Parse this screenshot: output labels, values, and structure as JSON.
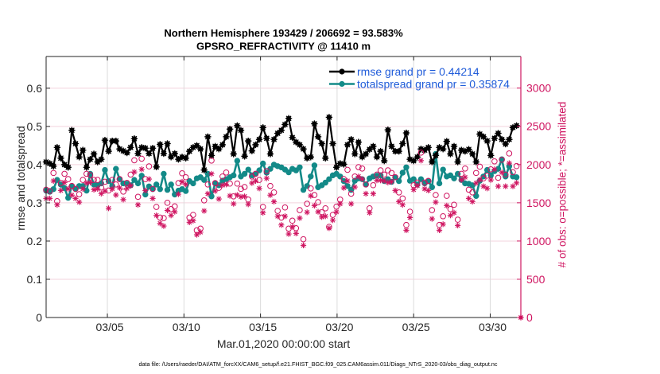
{
  "chart_data": {
    "type": "line",
    "title": [
      "Northern Hemisphere 193429 / 206692 = 93.583%",
      "GPSRO_REFRACTIVITY @ 11410 m"
    ],
    "xlabel": "Mar.01,2020 00:00:00 start",
    "ylabel_left": "rmse and totalspread",
    "ylabel_right": "# of obs: o=possible; *=assimilated",
    "x_units": "days since Mar.01,2020 00:00:00",
    "xlim": [
      0,
      31
    ],
    "ylim_left": [
      0,
      0.683
    ],
    "ylim_right": [
      0,
      3413
    ],
    "grid": true,
    "xticks": [
      {
        "value": 4,
        "label": "03/05"
      },
      {
        "value": 9,
        "label": "03/10"
      },
      {
        "value": 14,
        "label": "03/15"
      },
      {
        "value": 19,
        "label": "03/20"
      },
      {
        "value": 24,
        "label": "03/25"
      },
      {
        "value": 29,
        "label": "03/30"
      }
    ],
    "yticks_left": [
      {
        "value": 0,
        "label": "0"
      },
      {
        "value": 0.1,
        "label": "0.1"
      },
      {
        "value": 0.2,
        "label": "0.2"
      },
      {
        "value": 0.3,
        "label": "0.3"
      },
      {
        "value": 0.4,
        "label": "0.4"
      },
      {
        "value": 0.5,
        "label": "0.5"
      },
      {
        "value": 0.6,
        "label": "0.6"
      }
    ],
    "yticks_right": [
      {
        "value": 0,
        "label": "0"
      },
      {
        "value": 500,
        "label": "500"
      },
      {
        "value": 1000,
        "label": "1000"
      },
      {
        "value": 1500,
        "label": "1500"
      },
      {
        "value": 2000,
        "label": "2000"
      },
      {
        "value": 2500,
        "label": "2500"
      },
      {
        "value": 3000,
        "label": "3000"
      }
    ],
    "legend": {
      "position": "top-right",
      "text_color": "#1f5bd9",
      "entries": [
        {
          "label": "rmse grand pr = 0.44214",
          "color": "#000000"
        },
        {
          "label": "totalspread grand pr = 0.35874",
          "color": "#138a88"
        }
      ]
    },
    "x": [
      0,
      0.24,
      0.48,
      0.72,
      0.96,
      1.2,
      1.44,
      1.68,
      1.92,
      2.16,
      2.4,
      2.64,
      2.88,
      3.12,
      3.36,
      3.6,
      3.84,
      4.08,
      4.32,
      4.56,
      4.8,
      5.04,
      5.28,
      5.52,
      5.76,
      6.0,
      6.24,
      6.48,
      6.72,
      6.96,
      7.2,
      7.44,
      7.68,
      7.92,
      8.16,
      8.4,
      8.64,
      8.88,
      9.12,
      9.36,
      9.6,
      9.84,
      10.08,
      10.32,
      10.56,
      10.8,
      11.04,
      11.28,
      11.52,
      11.76,
      12.0,
      12.24,
      12.48,
      12.72,
      12.96,
      13.2,
      13.44,
      13.68,
      13.92,
      14.16,
      14.4,
      14.64,
      14.88,
      15.12,
      15.36,
      15.6,
      15.84,
      16.08,
      16.32,
      16.56,
      16.8,
      17.04,
      17.28,
      17.52,
      17.76,
      18.0,
      18.24,
      18.48,
      18.72,
      18.96,
      19.2,
      19.44,
      19.68,
      19.92,
      20.16,
      20.4,
      20.64,
      20.88,
      21.12,
      21.36,
      21.6,
      21.84,
      22.08,
      22.32,
      22.56,
      22.8,
      23.04,
      23.28,
      23.52,
      23.76,
      24.0,
      24.24,
      24.48,
      24.72,
      24.96,
      25.2,
      25.44,
      25.68,
      25.92,
      26.16,
      26.4,
      26.64,
      26.88,
      27.12,
      27.36,
      27.6,
      27.84,
      28.08,
      28.32,
      28.56,
      28.8,
      29.04,
      29.28,
      29.52,
      29.76,
      30.0,
      30.24,
      30.48,
      30.72
    ],
    "series": [
      {
        "name": "rmse",
        "axis": "left",
        "marker": "filled",
        "color": "#000000",
        "values": [
          0.407,
          0.403,
          0.396,
          0.445,
          0.417,
          0.4,
          0.393,
          0.49,
          0.455,
          0.42,
          0.438,
          0.393,
          0.414,
          0.428,
          0.407,
          0.414,
          0.464,
          0.435,
          0.462,
          0.462,
          0.441,
          0.436,
          0.431,
          0.445,
          0.468,
          0.429,
          0.445,
          0.443,
          0.429,
          0.443,
          0.394,
          0.453,
          0.429,
          0.455,
          0.42,
          0.429,
          0.414,
          0.42,
          0.417,
          0.435,
          0.445,
          0.45,
          0.441,
          0.386,
          0.473,
          0.424,
          0.448,
          0.441,
          0.452,
          0.473,
          0.493,
          0.428,
          0.502,
          0.49,
          0.422,
          0.462,
          0.436,
          0.452,
          0.466,
          0.497,
          0.469,
          0.428,
          0.466,
          0.482,
          0.49,
          0.505,
          0.521,
          0.471,
          0.459,
          0.452,
          0.441,
          0.417,
          0.42,
          0.507,
          0.473,
          0.455,
          0.417,
          0.524,
          0.455,
          0.393,
          0.403,
          0.401,
          0.452,
          0.466,
          0.428,
          0.459,
          0.42,
          0.428,
          0.44,
          0.448,
          0.42,
          0.435,
          0.41,
          0.491,
          0.448,
          0.435,
          0.435,
          0.455,
          0.483,
          0.414,
          0.41,
          0.42,
          0.441,
          0.438,
          0.445,
          0.407,
          0.424,
          0.445,
          0.441,
          0.461,
          0.428,
          0.448,
          0.407,
          0.438,
          0.435,
          0.44,
          0.428,
          0.407,
          0.48,
          0.473,
          0.462,
          0.424,
          0.469,
          0.482,
          0.466,
          0.454,
          0.466,
          0.497,
          0.502
        ]
      },
      {
        "name": "totalspread",
        "axis": "left",
        "marker": "filled",
        "color": "#138a88",
        "values": [
          0.332,
          0.329,
          0.336,
          0.36,
          0.348,
          0.339,
          0.313,
          0.344,
          0.336,
          0.344,
          0.344,
          0.332,
          0.376,
          0.348,
          0.346,
          0.351,
          0.386,
          0.357,
          0.344,
          0.389,
          0.362,
          0.351,
          0.35,
          0.346,
          0.36,
          0.351,
          0.371,
          0.322,
          0.343,
          0.336,
          0.348,
          0.336,
          0.376,
          0.334,
          0.348,
          0.322,
          0.332,
          0.336,
          0.331,
          0.357,
          0.351,
          0.364,
          0.367,
          0.36,
          0.376,
          0.317,
          0.351,
          0.346,
          0.358,
          0.362,
          0.367,
          0.372,
          0.41,
          0.369,
          0.376,
          0.387,
          0.372,
          0.376,
          0.385,
          0.403,
          0.379,
          0.389,
          0.4,
          0.396,
          0.393,
          0.387,
          0.38,
          0.389,
          0.385,
          0.393,
          0.334,
          0.344,
          0.369,
          0.398,
          0.341,
          0.346,
          0.353,
          0.362,
          0.372,
          0.376,
          0.369,
          0.357,
          0.344,
          0.334,
          0.358,
          0.364,
          0.362,
          0.348,
          0.364,
          0.369,
          0.371,
          0.372,
          0.357,
          0.362,
          0.355,
          0.367,
          0.357,
          0.379,
          0.393,
          0.358,
          0.362,
          0.348,
          0.362,
          0.351,
          0.357,
          0.341,
          0.428,
          0.351,
          0.387,
          0.369,
          0.372,
          0.364,
          0.376,
          0.36,
          0.351,
          0.35,
          0.346,
          0.318,
          0.358,
          0.369,
          0.386,
          0.372,
          0.383,
          0.389,
          0.414,
          0.369,
          0.396,
          0.369,
          0.367
        ]
      },
      {
        "name": "obs possible",
        "axis": "right",
        "marker": "o",
        "color": "#cf1460",
        "values": [
          1671,
          1654,
          1890,
          1521,
          1758,
          1879,
          1810,
          1720,
          1682,
          1612,
          1799,
          1879,
          1862,
          1799,
          1799,
          1700,
          1775,
          1661,
          1799,
          1740,
          1810,
          1646,
          1760,
          1869,
          2056,
          1578,
          2077,
          1810,
          1976,
          1682,
          1446,
          1307,
          1300,
          1500,
          1418,
          1453,
          1758,
          1886,
          1834,
          1307,
          1342,
          1141,
          1162,
          1532,
          1740,
          2052,
          1758,
          1695,
          1844,
          1896,
          1751,
          1584,
          1751,
          1682,
          1706,
          1542,
          1844,
          1879,
          1799,
          1446,
          1914,
          1720,
          1636,
          1394,
          1307,
          1439,
          1162,
          1266,
          1168,
          1404,
          1023,
          1487,
          1688,
          1602,
          1508,
          1376,
          1428,
          1186,
          1342,
          1450,
          1542,
          1810,
          1931,
          1619,
          1844,
          1966,
          1948,
          1740,
          1428,
          1730,
          1869,
          1924,
          1869,
          1924,
          1890,
          1834,
          1636,
          1557,
          1210,
          1383,
          1730,
          1765,
          2156,
          1765,
          1786,
          1404,
          1602,
          1210,
          1324,
          1591,
          1418,
          1474,
          1279,
          1879,
          1948,
          1671,
          1636,
          1890,
          1972,
          1820,
          1855,
          1938,
          2042,
          1827,
          2063,
          1869,
          2145,
          1900,
          1980
        ]
      },
      {
        "name": "obs assimilated",
        "axis": "right",
        "marker": "*",
        "color": "#cf1460",
        "values": [
          1557,
          1557,
          1786,
          1474,
          1661,
          1765,
          1682,
          1600,
          1557,
          1508,
          1682,
          1758,
          1765,
          1671,
          1682,
          1620,
          1654,
          1428,
          1682,
          1602,
          1695,
          1542,
          1688,
          1723,
          1903,
          1474,
          1938,
          1661,
          1810,
          1557,
          1335,
          1231,
          1196,
          1400,
          1335,
          1383,
          1612,
          1775,
          1740,
          1245,
          1266,
          1082,
          1116,
          1394,
          1619,
          1879,
          1654,
          1550,
          1730,
          1740,
          1591,
          1487,
          1602,
          1578,
          1584,
          1480,
          1758,
          1786,
          1688,
          1370,
          1820,
          1600,
          1515,
          1324,
          1210,
          1324,
          1092,
          1186,
          1099,
          1300,
          943,
          1376,
          1591,
          1463,
          1383,
          1314,
          1324,
          1168,
          1272,
          1380,
          1487,
          1695,
          1786,
          1487,
          1706,
          1844,
          1810,
          1619,
          1370,
          1619,
          1793,
          1793,
          1786,
          1765,
          1775,
          1661,
          1515,
          1474,
          1141,
          1307,
          1671,
          1723,
          2052,
          1682,
          1661,
          1290,
          1508,
          1141,
          1220,
          1463,
          1335,
          1370,
          1203,
          1799,
          1834,
          1557,
          1515,
          1758,
          1799,
          1716,
          1688,
          1799,
          1938,
          1716,
          1896,
          1716,
          2018,
          1716,
          1760
        ]
      }
    ],
    "end_point": {
      "x": 31,
      "obs_assimilated": 0
    }
  },
  "footer": {
    "data_file": "data file: /Users/raeder/DAI/ATM_forcXX/CAM6_setup/f.e21.FHIST_BGC.f09_025.CAM6assim.011/Diags_NTrS_2020-03/obs_diag_output.nc"
  }
}
